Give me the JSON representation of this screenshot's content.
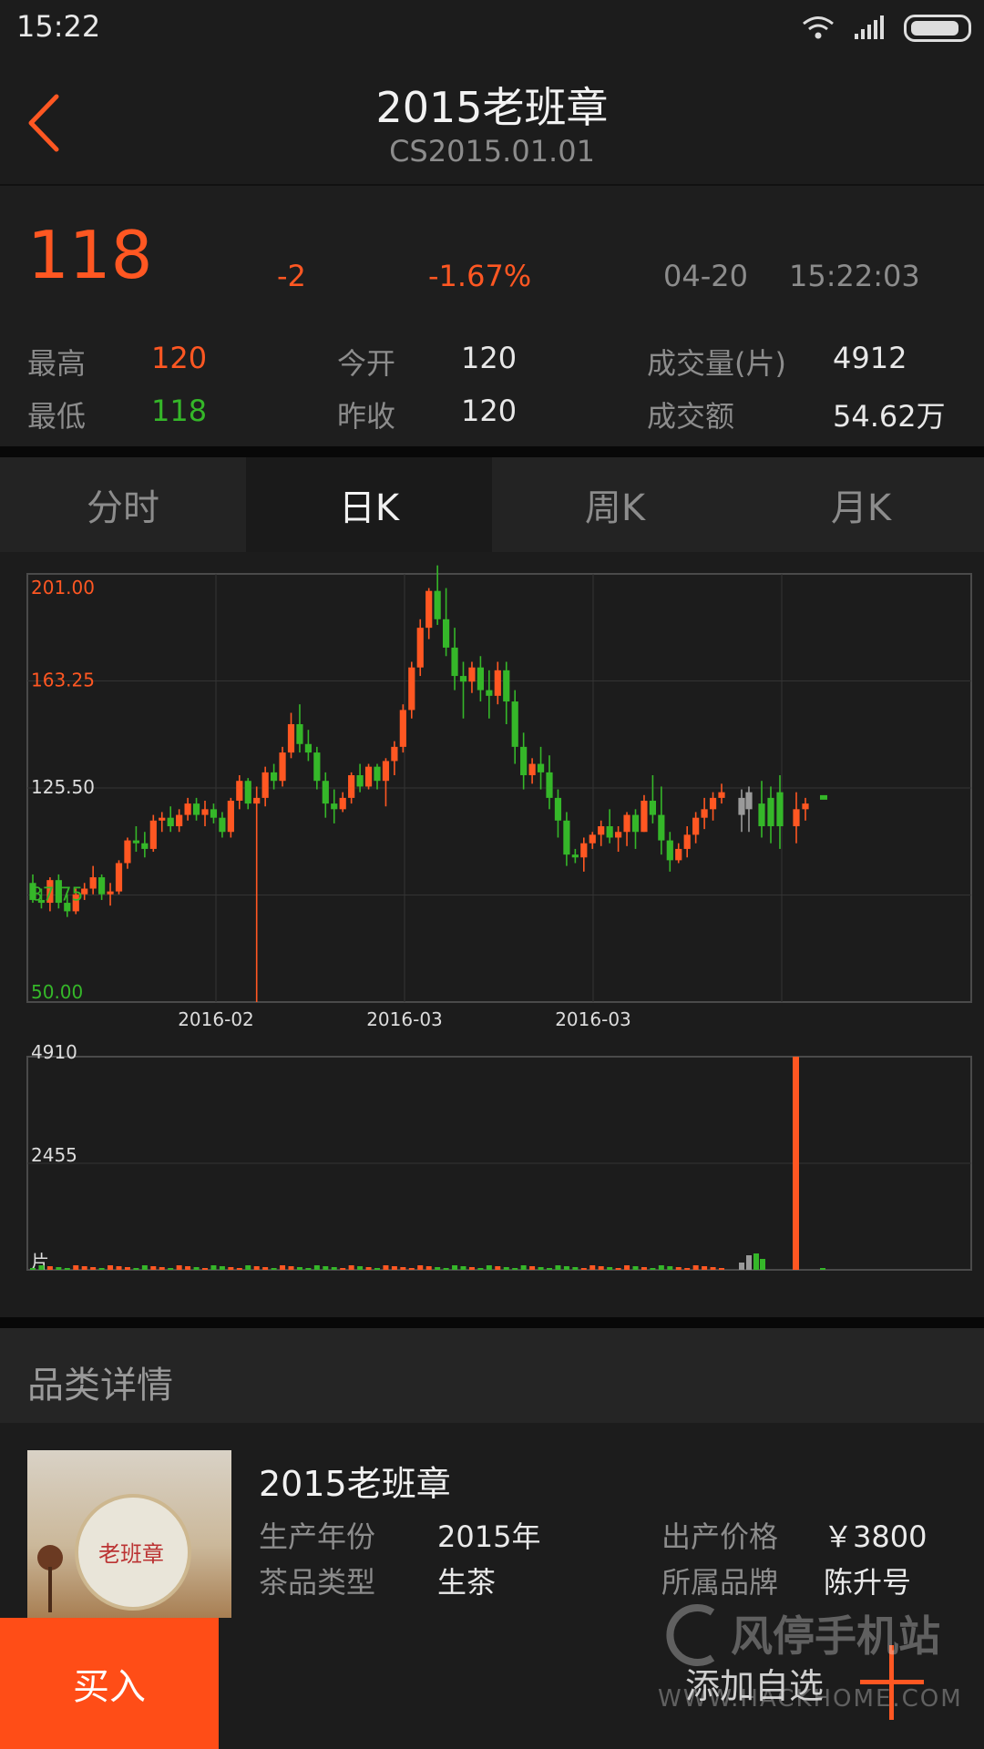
{
  "status": {
    "time": "15:22"
  },
  "header": {
    "title": "2015老班章",
    "subtitle": "CS2015.01.01"
  },
  "quote": {
    "price": "118",
    "change": "-2",
    "change_pct": "-1.67%",
    "date": "04-20",
    "time": "15:22:03",
    "stats": {
      "high_label": "最高",
      "high": "120",
      "low_label": "最低",
      "low": "118",
      "open_label": "今开",
      "open": "120",
      "prev_close_label": "昨收",
      "prev_close": "120",
      "volume_label": "成交量(片)",
      "volume": "4912",
      "amount_label": "成交额",
      "amount": "54.62万"
    }
  },
  "tabs": [
    {
      "label": "分时",
      "active": false
    },
    {
      "label": "日K",
      "active": true
    },
    {
      "label": "周K",
      "active": false
    },
    {
      "label": "月K",
      "active": false
    }
  ],
  "chart_data": {
    "type": "candlestick",
    "price_axis": {
      "ticks": [
        "201.00",
        "163.25",
        "125.50",
        "87.75",
        "50.00"
      ],
      "ylim": [
        50,
        201
      ]
    },
    "date_labels": [
      "2016-02",
      "2016-03",
      "2016-03"
    ],
    "volume_axis": {
      "ticks": [
        "4910",
        "2455"
      ],
      "ylim": [
        0,
        4910
      ],
      "unit": "片"
    },
    "candles": [
      [
        92,
        95,
        85,
        86
      ],
      [
        86,
        90,
        83,
        85
      ],
      [
        85,
        94,
        82,
        93
      ],
      [
        93,
        95,
        83,
        85
      ],
      [
        85,
        88,
        80,
        82
      ],
      [
        82,
        90,
        81,
        88
      ],
      [
        88,
        92,
        86,
        90
      ],
      [
        90,
        98,
        88,
        94
      ],
      [
        94,
        95,
        86,
        88
      ],
      [
        88,
        92,
        84,
        89
      ],
      [
        89,
        100,
        88,
        99
      ],
      [
        99,
        108,
        97,
        107
      ],
      [
        107,
        112,
        103,
        106
      ],
      [
        106,
        110,
        101,
        104
      ],
      [
        104,
        116,
        103,
        114
      ],
      [
        114,
        117,
        110,
        115
      ],
      [
        115,
        119,
        110,
        112
      ],
      [
        112,
        118,
        110,
        116
      ],
      [
        116,
        122,
        114,
        120
      ],
      [
        120,
        122,
        114,
        116
      ],
      [
        116,
        121,
        112,
        118
      ],
      [
        118,
        120,
        113,
        115
      ],
      [
        115,
        117,
        108,
        110
      ],
      [
        110,
        122,
        108,
        121
      ],
      [
        121,
        130,
        118,
        128
      ],
      [
        128,
        129,
        118,
        120
      ],
      [
        120,
        126,
        50,
        122
      ],
      [
        122,
        133,
        119,
        131
      ],
      [
        131,
        134,
        125,
        128
      ],
      [
        128,
        140,
        126,
        138
      ],
      [
        138,
        152,
        136,
        148
      ],
      [
        148,
        155,
        138,
        141
      ],
      [
        141,
        146,
        135,
        138
      ],
      [
        138,
        140,
        125,
        128
      ],
      [
        128,
        131,
        115,
        120
      ],
      [
        120,
        125,
        113,
        118
      ],
      [
        118,
        124,
        117,
        122
      ],
      [
        122,
        131,
        120,
        130
      ],
      [
        130,
        134,
        124,
        126
      ],
      [
        126,
        134,
        125,
        133
      ],
      [
        133,
        134,
        125,
        128
      ],
      [
        128,
        136,
        119,
        135
      ],
      [
        135,
        142,
        130,
        140
      ],
      [
        140,
        155,
        138,
        153
      ],
      [
        153,
        170,
        150,
        168
      ],
      [
        168,
        185,
        165,
        182
      ],
      [
        182,
        196,
        178,
        195
      ],
      [
        195,
        204,
        183,
        185
      ],
      [
        185,
        196,
        172,
        175
      ],
      [
        175,
        182,
        160,
        165
      ],
      [
        165,
        170,
        150,
        163
      ],
      [
        163,
        170,
        159,
        168
      ],
      [
        168,
        172,
        156,
        160
      ],
      [
        160,
        167,
        150,
        158
      ],
      [
        158,
        170,
        155,
        167
      ],
      [
        167,
        170,
        148,
        156
      ],
      [
        156,
        160,
        134,
        140
      ],
      [
        140,
        145,
        125,
        130
      ],
      [
        130,
        136,
        127,
        134
      ],
      [
        134,
        140,
        125,
        131
      ],
      [
        131,
        137,
        118,
        122
      ],
      [
        122,
        125,
        108,
        114
      ],
      [
        114,
        117,
        98,
        102
      ],
      [
        102,
        104,
        99,
        101
      ],
      [
        101,
        108,
        96,
        106
      ],
      [
        106,
        110,
        104,
        109
      ],
      [
        109,
        114,
        105,
        112
      ],
      [
        112,
        118,
        106,
        108
      ],
      [
        108,
        112,
        103,
        110
      ],
      [
        110,
        117,
        105,
        116
      ],
      [
        116,
        118,
        104,
        110
      ],
      [
        110,
        123,
        110,
        121
      ],
      [
        121,
        130,
        113,
        116
      ],
      [
        116,
        126,
        102,
        107
      ],
      [
        107,
        110,
        96,
        100
      ],
      [
        100,
        106,
        99,
        104
      ],
      [
        104,
        112,
        101,
        109
      ],
      [
        109,
        117,
        106,
        115
      ],
      [
        115,
        122,
        111,
        118
      ],
      [
        118,
        124,
        114,
        122
      ],
      [
        122,
        127,
        120,
        124
      ]
    ],
    "volumes_max": 4910
  },
  "section": {
    "title": "品类详情"
  },
  "product": {
    "name": "2015老班章",
    "year_label": "生产年份",
    "year": "2015年",
    "type_label": "茶品类型",
    "type": "生茶",
    "price_label": "出产价格",
    "price": "￥3800",
    "brand_label": "所属品牌",
    "brand": "陈升号",
    "thumb_text": "老班章"
  },
  "bottom": {
    "buy_label": "买入",
    "watch_label": "添加自选"
  },
  "watermark": {
    "name": "风停手机站",
    "url": "WWW.HACKHOME.COM"
  },
  "colors": {
    "up": "#ff5722",
    "down": "#35b729",
    "buy_bg": "#ff4d17"
  }
}
